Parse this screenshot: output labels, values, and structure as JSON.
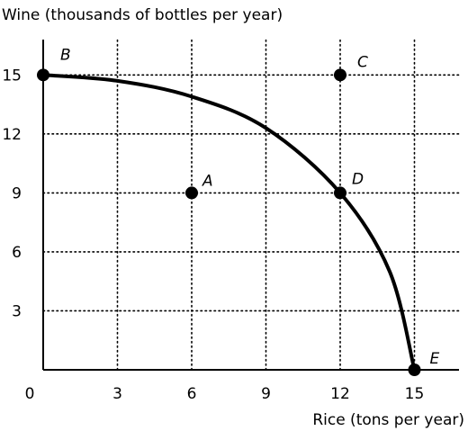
{
  "chart_data": {
    "type": "line",
    "title": "",
    "ylabel": "Wine (thousands of bottles per year)",
    "xlabel": "Rice (tons per year)",
    "origin_label": "0",
    "x_ticks": [
      3,
      6,
      9,
      12,
      15
    ],
    "y_ticks": [
      3,
      6,
      9,
      12,
      15
    ],
    "xlim": [
      0,
      16.8
    ],
    "ylim": [
      0,
      16.8
    ],
    "grid": "dotted",
    "curve_color": "#000000",
    "curve": {
      "x": [
        0,
        3,
        6,
        9,
        12,
        14,
        15
      ],
      "y": [
        15,
        14.7,
        13.9,
        12.3,
        9,
        5,
        0
      ]
    },
    "points": [
      {
        "label": "A",
        "x": 6,
        "y": 9
      },
      {
        "label": "B",
        "x": 0,
        "y": 15
      },
      {
        "label": "C",
        "x": 12,
        "y": 15
      },
      {
        "label": "D",
        "x": 12,
        "y": 9
      },
      {
        "label": "E",
        "x": 15,
        "y": 0
      }
    ]
  }
}
